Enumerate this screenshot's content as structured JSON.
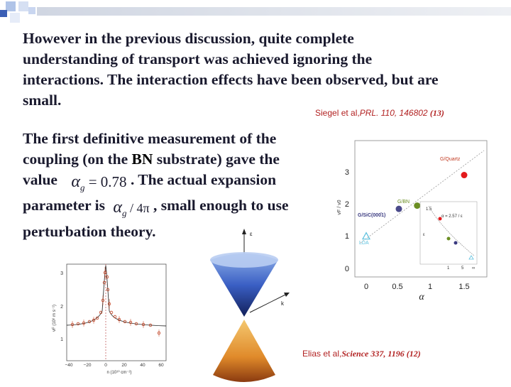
{
  "paragraph1": {
    "line1": "However in the previous discussion, quite complete",
    "line2": "understanding of transport was achieved ignoring the",
    "line3": "interactions. The interaction effects have been observed, but are",
    "line4": "small."
  },
  "citation1": {
    "authors": "Siegel et al,",
    "journal": "PRL. 110",
    "rest": ", 146802 ",
    "year": "(13)"
  },
  "paragraph2": {
    "line1": "The first definitive measurement of the",
    "line2a": "coupling (on the ",
    "line2b": "BN",
    "line2c": " substrate) gave the",
    "line3a": "value",
    "line3b": ". The actual expansion",
    "line4a": "parameter is",
    "line4b": ", small enough to use",
    "line5": "perturbation theory."
  },
  "equations": {
    "alpha": "α",
    "sub_g": "g",
    "equals_value": " = 0.78",
    "over_4pi": " / 4π"
  },
  "citation2": {
    "authors": "Elias et al,",
    "journal": "Science 337",
    "rest": ", 1196 (12)"
  },
  "left_plot": {
    "y_ticks": [
      "3",
      "2",
      "1"
    ],
    "x_ticks": [
      "−40",
      "−20",
      "0",
      "20",
      "40",
      "60"
    ],
    "y_label": "vF (10⁶ m s⁻¹)",
    "x_label": "n (10¹⁰ cm⁻²)"
  },
  "cone": {
    "axis_e": "ε",
    "axis_k": "k"
  },
  "right_plot": {
    "y_ticks": [
      "3",
      "2",
      "1",
      "0"
    ],
    "x_ticks": [
      "0",
      "0.5",
      "1",
      "1.5"
    ],
    "y_label": "vF / v0",
    "x_label": "α",
    "labels": {
      "quartz": "G/Quartz",
      "bn": "G/BN",
      "sic": "G/SiC(000̄1)",
      "lda": "LDA"
    },
    "inset": {
      "tick": "1.5",
      "eq1": "α = 2.57 / ε",
      "axis": "ε",
      "x_ticks": [
        "1",
        "5",
        "∞"
      ]
    },
    "colors": {
      "quartz": "#e31a1c",
      "bn": "#6b8e23",
      "sic": "#4a4a8a",
      "lda": "#5bc0de"
    }
  },
  "chart_data": {
    "type": "scatter",
    "series": [
      {
        "name": "G/Quartz",
        "x": [
          1.5
        ],
        "y": [
          2.9
        ]
      },
      {
        "name": "G/BN",
        "x": [
          0.78
        ],
        "y": [
          1.95
        ]
      },
      {
        "name": "G/SiC(000̄1)",
        "x": [
          0.5
        ],
        "y": [
          1.85
        ]
      },
      {
        "name": "LDA",
        "x": [
          0.0
        ],
        "y": [
          1.0
        ]
      }
    ],
    "xlabel": "α",
    "ylabel": "vF / v0",
    "xlim": [
      -0.1,
      1.75
    ],
    "ylim": [
      -0.1,
      3.7
    ],
    "xticks": [
      0,
      0.5,
      1,
      1.5
    ],
    "yticks": [
      0,
      1,
      2,
      3
    ]
  }
}
